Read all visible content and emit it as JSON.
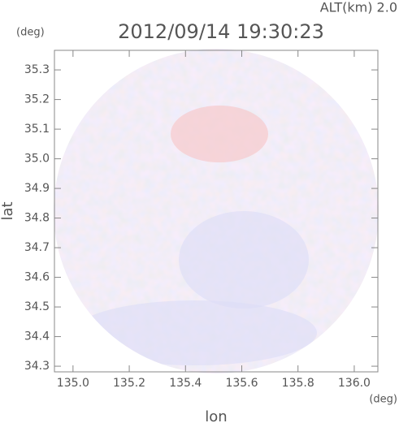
{
  "chart_data": {
    "type": "radar-map",
    "title": "2012/09/14 19:30:23",
    "annotation": "ALT(km) 2.0",
    "y_unit": "(deg)",
    "x_unit": "(deg)",
    "xlabel": "lon",
    "ylabel": "lat",
    "xlim": [
      134.934,
      136.084
    ],
    "ylim": [
      34.281,
      35.366
    ],
    "xticks": [
      {
        "value": 135.0,
        "label": "135.0"
      },
      135.2,
      135.4,
      135.6,
      135.8,
      {
        "value": 136.0,
        "label": "136.0"
      }
    ],
    "yticks": [
      34.3,
      34.4,
      34.5,
      34.6,
      34.7,
      34.8,
      34.9,
      {
        "value": 35.0,
        "label": "35.0"
      },
      35.1,
      35.2,
      35.3
    ]
  }
}
